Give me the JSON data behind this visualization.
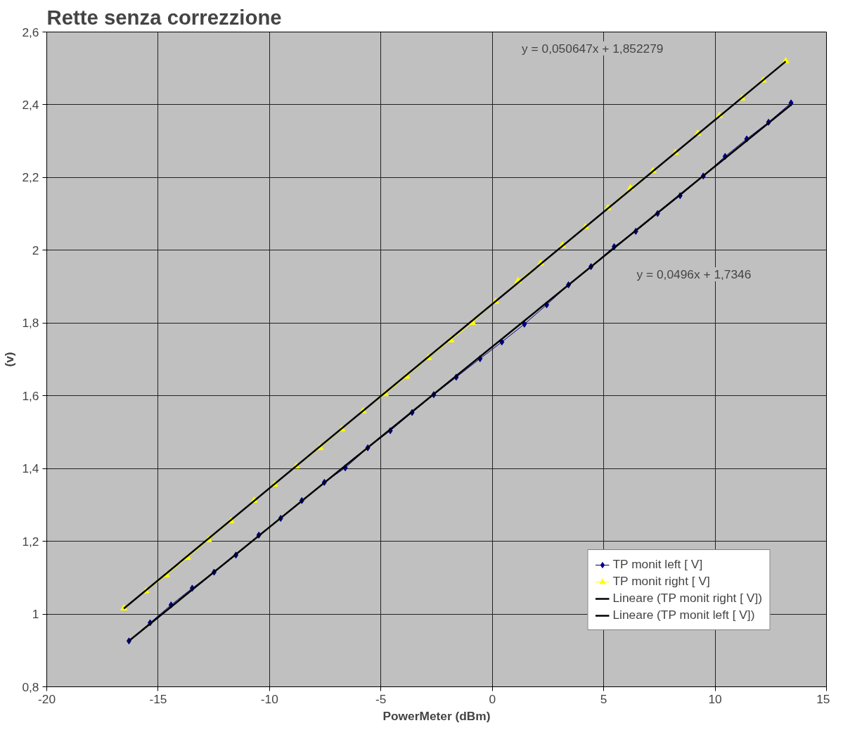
{
  "chart_data": {
    "type": "line",
    "title": "Rette senza correzzione",
    "xlabel": "PowerMeter (dBm)",
    "ylabel": "(v)",
    "xlim": [
      -20,
      15
    ],
    "xticks": [
      -20,
      -15,
      -10,
      -5,
      0,
      5,
      10,
      15
    ],
    "ylim": [
      0.8,
      2.6
    ],
    "yticks": [
      {
        "value": 0.8,
        "label": "0,8"
      },
      1,
      {
        "value": 1.2,
        "label": "1,2"
      },
      {
        "value": 1.4,
        "label": "1,4"
      },
      {
        "value": 1.6,
        "label": "1,6"
      },
      {
        "value": 1.8,
        "label": "1,8"
      },
      2,
      {
        "value": 2.2,
        "label": "2,2"
      },
      {
        "value": 2.4,
        "label": "2,4"
      },
      {
        "value": 2.6,
        "label": "2,6"
      }
    ],
    "grid": true,
    "legend": "bottom right",
    "line_style": "solid",
    "series": [
      {
        "name": "TP monit left [ V]",
        "color": "#000080",
        "marker": "diamond",
        "x": [
          -16.31,
          -15.36,
          -14.42,
          -13.47,
          -12.49,
          -11.51,
          -10.48,
          -9.5,
          -8.55,
          -7.54,
          -6.6,
          -5.59,
          -4.58,
          -3.6,
          -2.63,
          -1.62,
          -0.55,
          0.43,
          1.44,
          2.44,
          3.42,
          4.43,
          5.47,
          6.44,
          7.42,
          8.43,
          9.47,
          10.45,
          11.42,
          12.4,
          13.41
        ],
        "values": [
          0.926,
          0.976,
          1.025,
          1.071,
          1.115,
          1.162,
          1.217,
          1.263,
          1.312,
          1.362,
          1.402,
          1.457,
          1.504,
          1.554,
          1.603,
          1.651,
          1.702,
          1.748,
          1.797,
          1.85,
          1.905,
          1.955,
          2.01,
          2.052,
          2.101,
          2.15,
          2.204,
          2.258,
          2.306,
          2.352,
          2.405
        ]
      },
      {
        "name": "TP monit right [ V]",
        "color": "#ffff00",
        "marker": "triangle",
        "x": [
          -16.54,
          -15.55,
          -14.63,
          -13.68,
          -12.74,
          -11.73,
          -10.69,
          -9.77,
          -8.8,
          -7.73,
          -6.75,
          -5.8,
          -4.8,
          -3.85,
          -2.87,
          -1.86,
          -0.89,
          0.15,
          1.16,
          2.17,
          3.15,
          4.18,
          5.19,
          6.2,
          7.21,
          8.22,
          9.22,
          10.2,
          11.21,
          12.16,
          13.17
        ],
        "values": [
          1.016,
          1.063,
          1.107,
          1.155,
          1.204,
          1.256,
          1.312,
          1.356,
          1.406,
          1.457,
          1.508,
          1.558,
          1.605,
          1.653,
          1.704,
          1.753,
          1.801,
          1.859,
          1.916,
          1.964,
          2.013,
          2.064,
          2.116,
          2.171,
          2.218,
          2.268,
          2.321,
          2.37,
          2.418,
          2.467,
          2.52
        ]
      },
      {
        "name": "Lineare (TP monit right [ V])",
        "color": "#000000",
        "marker": "none",
        "x": [
          -16.54,
          13.17
        ],
        "values": [
          1.015,
          2.519
        ]
      },
      {
        "name": "Lineare (TP monit left [ V])",
        "color": "#000000",
        "marker": "none",
        "x": [
          -16.31,
          13.41
        ],
        "values": [
          0.926,
          2.4
        ]
      }
    ],
    "annotations": [
      "y = 0,050647x + 1,852279",
      "y = 0,0496x + 1,7346"
    ]
  }
}
